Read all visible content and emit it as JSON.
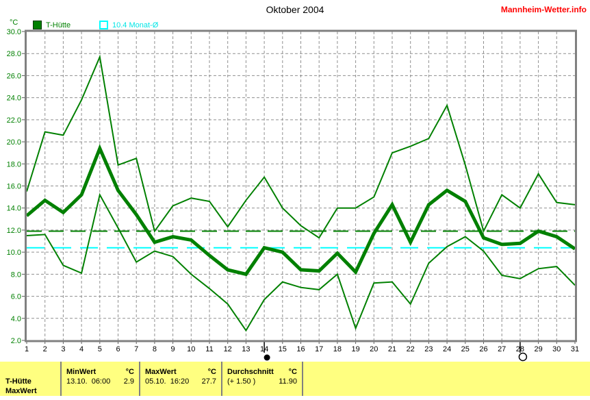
{
  "header": {
    "title": "Oktober 2004",
    "brand": "Mannheim-Wetter.info"
  },
  "legend": {
    "unit": "°C",
    "station_label": "T-Hütte",
    "month_avg_label": "10.4 Monat-Ø"
  },
  "chart_data": {
    "type": "line",
    "title": "Oktober 2004",
    "xlabel": "",
    "ylabel": "°C",
    "x": [
      1,
      2,
      3,
      4,
      5,
      6,
      7,
      8,
      9,
      10,
      11,
      12,
      13,
      14,
      15,
      16,
      17,
      18,
      19,
      20,
      21,
      22,
      23,
      24,
      25,
      26,
      27,
      28,
      29,
      30,
      31
    ],
    "ylim": [
      2.0,
      30.0
    ],
    "ytick_step": 2.0,
    "grid": true,
    "legend_position": "top",
    "series": [
      {
        "name": "max",
        "color": "#008000",
        "width": 2,
        "values": [
          15.5,
          20.9,
          20.6,
          23.8,
          27.7,
          17.9,
          18.5,
          11.9,
          14.2,
          14.9,
          14.6,
          12.3,
          14.7,
          16.8,
          14.0,
          12.4,
          11.3,
          14.0,
          14.0,
          15.0,
          19.0,
          19.6,
          20.3,
          23.3,
          17.9,
          11.9,
          15.2,
          14.0,
          17.1,
          14.5,
          14.3
        ]
      },
      {
        "name": "mean",
        "color": "#008000",
        "width": 5,
        "values": [
          13.3,
          14.7,
          13.6,
          15.2,
          19.4,
          15.6,
          13.4,
          10.9,
          11.4,
          11.1,
          9.7,
          8.4,
          8.0,
          10.4,
          10.0,
          8.4,
          8.3,
          9.9,
          8.2,
          11.7,
          14.3,
          10.9,
          14.3,
          15.6,
          14.6,
          11.3,
          10.7,
          10.8,
          11.9,
          11.4,
          10.3
        ]
      },
      {
        "name": "min",
        "color": "#008000",
        "width": 2,
        "values": [
          11.5,
          11.6,
          8.8,
          8.1,
          15.2,
          12.2,
          9.1,
          10.1,
          9.6,
          8.0,
          6.7,
          5.3,
          2.9,
          5.7,
          7.3,
          6.8,
          6.6,
          8.0,
          3.1,
          7.2,
          7.3,
          5.3,
          9.0,
          10.5,
          11.4,
          10.1,
          7.9,
          7.6,
          8.5,
          8.7,
          7.0
        ]
      }
    ],
    "reference_lines": [
      {
        "name": "Durchschnitt",
        "value": 11.9,
        "color": "#008000",
        "dash": "22,10"
      },
      {
        "name": "Monat-Durchschnitt",
        "value": 10.4,
        "color": "#00ffff",
        "dash": "26,13"
      }
    ],
    "special_ticks": [
      14,
      28
    ],
    "moon_markers": [
      {
        "day": 14,
        "phase": "new"
      },
      {
        "day": 28,
        "phase": "full"
      }
    ]
  },
  "summary": {
    "row_label_line1": "T-Hütte",
    "row_label_line2": "MaxWert",
    "min": {
      "header": "MinWert",
      "unit": "°C",
      "datetime": "13.10.  06:00",
      "value": "2.9"
    },
    "max": {
      "header": "MaxWert",
      "unit": "°C",
      "datetime": "05.10.  16:20",
      "value": "27.7"
    },
    "avg": {
      "header": "Durchschnitt",
      "unit": "°C",
      "deviation": "(+ 1.50 )",
      "value": "11.90"
    }
  }
}
